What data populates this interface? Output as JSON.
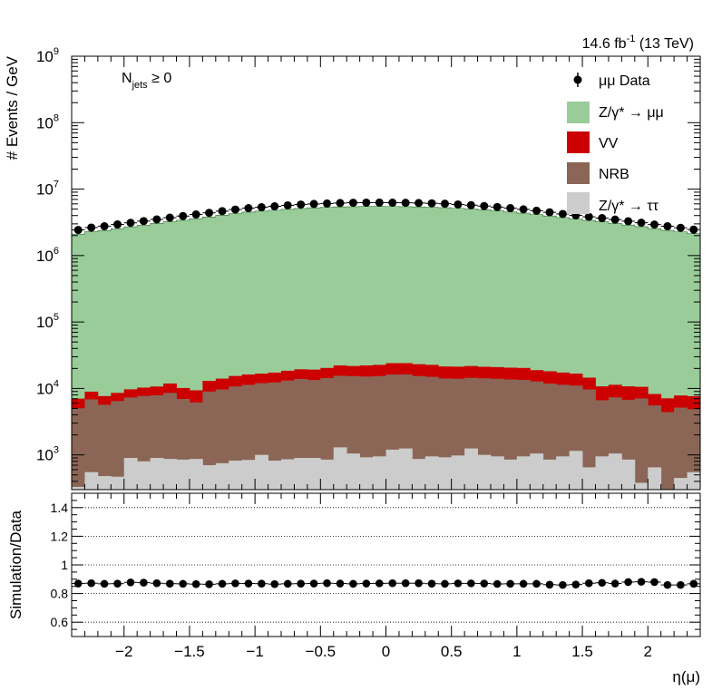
{
  "chart_data": [
    {
      "type": "bar",
      "stacked": true,
      "log_y": true,
      "title": "",
      "lumi": "14.6 fb",
      "lumi_exp": "-1",
      "energy": "(13 TeV)",
      "category_main": "N",
      "category_sub": "jets",
      "category_rel": " ≥ 0",
      "xlabel": "",
      "ylabel": "# Events / GeV",
      "xlim": [
        -2.4,
        2.4
      ],
      "ylim": [
        300,
        1000000000
      ],
      "x_tick_labels": [
        "−2",
        "−1.5",
        "−1",
        "−0.5",
        "0",
        "0.5",
        "1",
        "1.5",
        "2"
      ],
      "y_tick_labels": [
        {
          "base": "10",
          "exp": "3"
        },
        {
          "base": "10",
          "exp": "4"
        },
        {
          "base": "10",
          "exp": "5"
        },
        {
          "base": "10",
          "exp": "6"
        },
        {
          "base": "10",
          "exp": "7"
        },
        {
          "base": "10",
          "exp": "8"
        },
        {
          "base": "10",
          "exp": "9"
        }
      ],
      "n_bins": 48,
      "legend_position": "top-right",
      "series": [
        {
          "name": "Z/γ* → ττ",
          "color": "#cccccc",
          "values": [
            330,
            550,
            480,
            470,
            900,
            800,
            900,
            870,
            850,
            870,
            700,
            750,
            820,
            840,
            1000,
            820,
            860,
            900,
            900,
            850,
            1300,
            1050,
            920,
            950,
            1200,
            1250,
            870,
            950,
            920,
            980,
            1250,
            1000,
            950,
            850,
            950,
            1050,
            850,
            950,
            1150,
            650,
            950,
            1050,
            850,
            380,
            650,
            300,
            450,
            550
          ]
        },
        {
          "name": "NRB",
          "color": "#8b6656",
          "values": [
            4700,
            6300,
            5200,
            6000,
            6400,
            6900,
            7000,
            7700,
            6100,
            5300,
            8300,
            8900,
            9900,
            10500,
            11000,
            11500,
            12300,
            13000,
            12500,
            13500,
            14200,
            14300,
            14200,
            14400,
            15000,
            15000,
            14500,
            14000,
            13200,
            13000,
            13200,
            13200,
            13000,
            12800,
            12500,
            11700,
            11000,
            10400,
            9900,
            9000,
            5700,
            6300,
            5900,
            6700,
            4900,
            4100,
            4700,
            4300
          ]
        },
        {
          "name": "VV",
          "color": "#cc0000",
          "values": [
            2000,
            2100,
            2000,
            2100,
            2400,
            2600,
            2800,
            3300,
            3200,
            3200,
            4000,
            4400,
            4700,
            4900,
            4700,
            5000,
            5300,
            5500,
            5800,
            6000,
            6700,
            6400,
            7100,
            7300,
            7800,
            7800,
            7800,
            7700,
            7300,
            7300,
            7300,
            7000,
            7000,
            6900,
            6900,
            6100,
            6300,
            6000,
            5700,
            4900,
            4100,
            4000,
            4000,
            3500,
            2700,
            2700,
            2700,
            2800
          ]
        },
        {
          "name": "Z/γ* → μμ",
          "color": "#99cc99",
          "values": [
            2093000,
            2277000,
            2380000,
            2534000,
            2694000,
            2863000,
            3031000,
            3210000,
            3385000,
            3575000,
            3787000,
            4026000,
            4273000,
            4495000,
            4647000,
            4789000,
            4945000,
            5088000,
            5204000,
            5294000,
            5369000,
            5423000,
            5453000,
            5458000,
            5446000,
            5420000,
            5379000,
            5322000,
            5230000,
            5116000,
            4983000,
            4845000,
            4677000,
            4508000,
            4330000,
            4137000,
            3922000,
            3720000,
            3533000,
            3364000,
            3201000,
            3034000,
            2871000,
            2718000,
            2542000,
            2388000,
            2271000,
            2129000
          ]
        }
      ],
      "data_series": {
        "name": "μμ Data",
        "color": "#000000",
        "values": [
          2430000,
          2640000,
          2760000,
          2940000,
          3110000,
          3300000,
          3500000,
          3720000,
          3930000,
          4150000,
          4400000,
          4660000,
          4930000,
          5170000,
          5340000,
          5510000,
          5700000,
          5860000,
          5980000,
          6080000,
          6170000,
          6240000,
          6260000,
          6270000,
          6250000,
          6230000,
          6180000,
          6120000,
          6030000,
          5880000,
          5730000,
          5560000,
          5370000,
          5170000,
          4960000,
          4730000,
          4480000,
          4230000,
          4020000,
          3830000,
          3660000,
          3480000,
          3290000,
          3120000,
          2930000,
          2760000,
          2620000,
          2460000
        ]
      }
    },
    {
      "type": "scatter",
      "title": "",
      "xlabel": "η(μ)",
      "ylabel": "Simulation/Data",
      "xlim": [
        -2.4,
        2.4
      ],
      "ylim": [
        0.5,
        1.5
      ],
      "y_tick_labels": [
        "0.6",
        "0.8",
        "1",
        "1.2",
        "1.4"
      ],
      "grid_y": true,
      "series": [
        {
          "name": "",
          "values": [
            0.87,
            0.872,
            0.868,
            0.869,
            0.878,
            0.876,
            0.872,
            0.869,
            0.868,
            0.866,
            0.865,
            0.868,
            0.871,
            0.87,
            0.869,
            0.866,
            0.868,
            0.869,
            0.87,
            0.872,
            0.87,
            0.868,
            0.87,
            0.871,
            0.872,
            0.872,
            0.872,
            0.869,
            0.868,
            0.871,
            0.871,
            0.87,
            0.867,
            0.868,
            0.868,
            0.868,
            0.862,
            0.86,
            0.863,
            0.872,
            0.875,
            0.87,
            0.88,
            0.882,
            0.88,
            0.86,
            0.86,
            0.868
          ]
        }
      ]
    }
  ]
}
